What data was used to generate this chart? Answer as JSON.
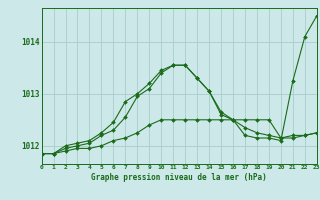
{
  "bg_color": "#cce8e8",
  "grid_color": "#aacccc",
  "line_color": "#1a6b1a",
  "hours": [
    0,
    1,
    2,
    3,
    4,
    5,
    6,
    7,
    8,
    9,
    10,
    11,
    12,
    13,
    14,
    15,
    16,
    17,
    18,
    19,
    20,
    21,
    22,
    23
  ],
  "line1": [
    1011.85,
    1011.85,
    1011.9,
    1011.95,
    1011.95,
    1012.0,
    1012.1,
    1012.15,
    1012.25,
    1012.4,
    1012.5,
    1012.5,
    1012.5,
    1012.5,
    1012.5,
    1012.5,
    1012.5,
    1012.5,
    1012.5,
    1012.5,
    1012.15,
    1012.15,
    1012.2,
    1012.25
  ],
  "line2": [
    1011.85,
    1011.85,
    1011.95,
    1012.0,
    1012.05,
    1012.2,
    1012.3,
    1012.55,
    1012.95,
    1013.1,
    1013.4,
    1013.55,
    1013.55,
    1013.3,
    1013.05,
    1012.6,
    1012.5,
    1012.35,
    1012.25,
    1012.2,
    1012.15,
    1012.2,
    1012.2,
    1012.25
  ],
  "line3": [
    1011.85,
    1011.85,
    1012.0,
    1012.05,
    1012.1,
    1012.25,
    1012.45,
    1012.85,
    1013.0,
    1013.2,
    1013.45,
    1013.55,
    1013.55,
    1013.3,
    1013.05,
    1012.65,
    1012.5,
    1012.2,
    1012.15,
    1012.15,
    1012.1,
    1013.25,
    1014.1,
    1014.5
  ],
  "ylim": [
    1011.65,
    1014.65
  ],
  "yticks": [
    1012,
    1013,
    1014
  ],
  "xlim": [
    0,
    23
  ]
}
